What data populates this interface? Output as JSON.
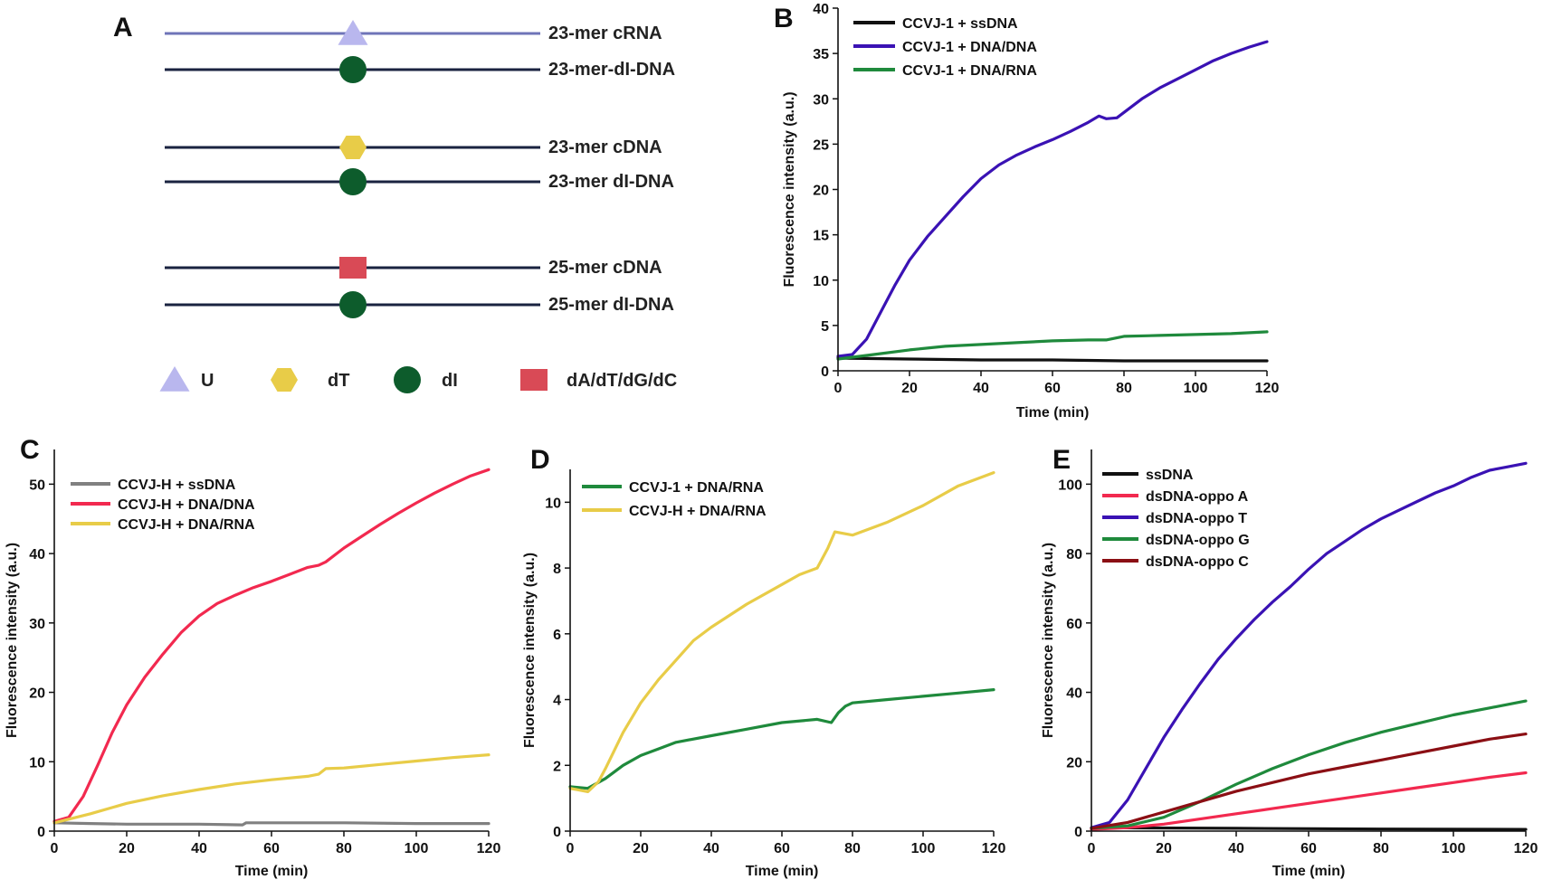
{
  "panel_a": {
    "letter": "A",
    "pairs": [
      {
        "top": {
          "label": "23-mer cRNA",
          "color": "#6f74b8",
          "marker": "triangle",
          "marker_color": "#b9b7ee"
        },
        "bottom": {
          "label": "23-mer-dI-DNA",
          "color": "#1a2340",
          "marker": "circle",
          "marker_color": "#0d5c2c"
        }
      },
      {
        "top": {
          "label": "23-mer cDNA",
          "color": "#1a2340",
          "marker": "hexagon",
          "marker_color": "#e8cc48"
        },
        "bottom": {
          "label": "23-mer dI-DNA",
          "color": "#1a2340",
          "marker": "circle",
          "marker_color": "#0d5c2c"
        }
      },
      {
        "top": {
          "label": "25-mer cDNA",
          "color": "#1a2340",
          "marker": "square",
          "marker_color": "#d94a56"
        },
        "bottom": {
          "label": "25-mer dI-DNA",
          "color": "#1a2340",
          "marker": "circle",
          "marker_color": "#0d5c2c"
        }
      }
    ],
    "legend": [
      {
        "symbol": "triangle",
        "color": "#b9b7ee",
        "label": "U"
      },
      {
        "symbol": "hexagon",
        "color": "#e8cc48",
        "label": "dT"
      },
      {
        "symbol": "circle",
        "color": "#0d5c2c",
        "label": "dI"
      },
      {
        "symbol": "square",
        "color": "#d94a56",
        "label": "dA/dT/dG/dC"
      }
    ]
  },
  "chart_data": [
    {
      "panel": "B",
      "type": "line",
      "xlabel": "Time (min)",
      "ylabel": "Fluorescence intensity (a.u.)",
      "xlim": [
        0,
        120
      ],
      "ylim": [
        0,
        40
      ],
      "xticks": [
        0,
        20,
        40,
        60,
        80,
        100,
        120
      ],
      "yticks": [
        0,
        5,
        10,
        15,
        20,
        25,
        30,
        35,
        40
      ],
      "legend_position": "top-left",
      "series": [
        {
          "name": "CCVJ-1 + ssDNA",
          "color": "#111111",
          "x": [
            0,
            20,
            40,
            60,
            80,
            100,
            120
          ],
          "y": [
            1.4,
            1.3,
            1.2,
            1.2,
            1.1,
            1.1,
            1.1
          ]
        },
        {
          "name": "CCVJ-1 + DNA/DNA",
          "color": "#3a12b4",
          "x": [
            0,
            4,
            8,
            12,
            16,
            20,
            25,
            30,
            35,
            40,
            45,
            50,
            55,
            60,
            65,
            70,
            73,
            75,
            78,
            80,
            85,
            90,
            95,
            100,
            105,
            110,
            115,
            120
          ],
          "y": [
            1.6,
            1.8,
            3.5,
            6.5,
            9.5,
            12.2,
            14.8,
            17.0,
            19.2,
            21.2,
            22.7,
            23.8,
            24.7,
            25.5,
            26.4,
            27.4,
            28.1,
            27.8,
            27.9,
            28.5,
            30.0,
            31.2,
            32.2,
            33.2,
            34.2,
            35.0,
            35.7,
            36.3
          ]
        },
        {
          "name": "CCVJ-1 + DNA/RNA",
          "color": "#1f8a3c",
          "x": [
            0,
            10,
            20,
            30,
            40,
            50,
            60,
            70,
            75,
            80,
            90,
            100,
            110,
            120
          ],
          "y": [
            1.3,
            1.8,
            2.3,
            2.7,
            2.9,
            3.1,
            3.3,
            3.4,
            3.4,
            3.8,
            3.9,
            4.0,
            4.1,
            4.3
          ]
        }
      ]
    },
    {
      "panel": "C",
      "type": "line",
      "xlabel": "Time (min)",
      "ylabel": "Fluorescence intensity (a.u.)",
      "xlim": [
        0,
        120
      ],
      "ylim": [
        0,
        55
      ],
      "xticks": [
        0,
        20,
        40,
        60,
        80,
        100,
        120
      ],
      "yticks": [
        0,
        10,
        20,
        30,
        40,
        50
      ],
      "legend_position": "top-left",
      "series": [
        {
          "name": "CCVJ-H + ssDNA",
          "color": "#808080",
          "x": [
            0,
            10,
            20,
            30,
            40,
            52,
            53,
            60,
            80,
            100,
            120
          ],
          "y": [
            1.2,
            1.1,
            1.0,
            1.0,
            1.0,
            0.9,
            1.2,
            1.2,
            1.2,
            1.1,
            1.1
          ]
        },
        {
          "name": "CCVJ-H + DNA/DNA",
          "color": "#f2294f",
          "x": [
            0,
            4,
            8,
            12,
            16,
            20,
            25,
            30,
            35,
            40,
            45,
            50,
            55,
            60,
            65,
            70,
            73,
            75,
            78,
            80,
            85,
            90,
            95,
            100,
            105,
            110,
            115,
            120
          ],
          "y": [
            1.4,
            2.0,
            5.0,
            9.5,
            14.2,
            18.2,
            22.2,
            25.5,
            28.6,
            31.0,
            32.8,
            34.0,
            35.1,
            36.0,
            37.0,
            38.0,
            38.3,
            38.8,
            40.0,
            40.8,
            42.5,
            44.2,
            45.8,
            47.3,
            48.7,
            50.0,
            51.2,
            52.1
          ]
        },
        {
          "name": "CCVJ-H + DNA/RNA",
          "color": "#e8cc48",
          "x": [
            0,
            10,
            20,
            30,
            40,
            50,
            60,
            70,
            73,
            75,
            80,
            90,
            100,
            110,
            120
          ],
          "y": [
            1.2,
            2.5,
            4.0,
            5.1,
            6.0,
            6.8,
            7.4,
            7.9,
            8.2,
            9.0,
            9.1,
            9.6,
            10.1,
            10.6,
            11.0
          ]
        }
      ]
    },
    {
      "panel": "D",
      "type": "line",
      "xlabel": "Time (min)",
      "ylabel": "Fluorescence intensity (a.u.)",
      "xlim": [
        0,
        120
      ],
      "ylim": [
        0,
        11
      ],
      "xticks": [
        0,
        20,
        40,
        60,
        80,
        100,
        120
      ],
      "yticks": [
        0,
        2,
        4,
        6,
        8,
        10
      ],
      "legend_position": "top-left",
      "series": [
        {
          "name": "CCVJ-1 + DNA/RNA",
          "color": "#1f8a3c",
          "x": [
            0,
            5,
            10,
            15,
            20,
            25,
            30,
            40,
            50,
            60,
            70,
            74,
            76,
            78,
            80,
            90,
            100,
            110,
            120
          ],
          "y": [
            1.35,
            1.3,
            1.6,
            2.0,
            2.3,
            2.5,
            2.7,
            2.9,
            3.1,
            3.3,
            3.4,
            3.3,
            3.6,
            3.8,
            3.9,
            4.0,
            4.1,
            4.2,
            4.3
          ]
        },
        {
          "name": "CCVJ-H + DNA/RNA",
          "color": "#e8cc48",
          "x": [
            0,
            5,
            8,
            10,
            15,
            20,
            25,
            30,
            35,
            40,
            50,
            60,
            65,
            70,
            73,
            75,
            80,
            90,
            100,
            110,
            120
          ],
          "y": [
            1.3,
            1.2,
            1.5,
            1.9,
            3.0,
            3.9,
            4.6,
            5.2,
            5.8,
            6.2,
            6.9,
            7.5,
            7.8,
            8.0,
            8.6,
            9.1,
            9.0,
            9.4,
            9.9,
            10.5,
            10.9
          ]
        }
      ]
    },
    {
      "panel": "E",
      "type": "line",
      "xlabel": "Time (min)",
      "ylabel": "Fluorescence intensity (a.u.)",
      "xlim": [
        0,
        120
      ],
      "ylim": [
        0,
        110
      ],
      "xticks": [
        0,
        20,
        40,
        60,
        80,
        100,
        120
      ],
      "yticks": [
        0,
        20,
        40,
        60,
        80,
        100
      ],
      "legend_position": "top-left",
      "series": [
        {
          "name": "ssDNA",
          "color": "#111111",
          "x": [
            0,
            40,
            80,
            120
          ],
          "y": [
            1.0,
            0.8,
            0.6,
            0.5
          ]
        },
        {
          "name": "dsDNA-oppo A",
          "color": "#f2294f",
          "x": [
            0,
            10,
            20,
            30,
            40,
            50,
            60,
            70,
            80,
            90,
            100,
            110,
            120
          ],
          "y": [
            0.5,
            1.0,
            2.0,
            3.5,
            5.0,
            6.5,
            8.0,
            9.5,
            11.0,
            12.5,
            14.0,
            15.5,
            16.8
          ]
        },
        {
          "name": "dsDNA-oppo T",
          "color": "#3a12b4",
          "x": [
            0,
            5,
            10,
            15,
            20,
            25,
            30,
            35,
            40,
            45,
            50,
            55,
            60,
            65,
            70,
            75,
            80,
            85,
            90,
            95,
            100,
            105,
            110,
            115,
            120
          ],
          "y": [
            1.0,
            2.5,
            9.0,
            18.0,
            27.0,
            35.0,
            42.5,
            49.5,
            55.5,
            61.0,
            66.0,
            70.5,
            75.5,
            80.0,
            83.5,
            87.0,
            90.0,
            92.5,
            95.0,
            97.5,
            99.5,
            102.0,
            104.0,
            105.0,
            106.0
          ]
        },
        {
          "name": "dsDNA-oppo G",
          "color": "#1f8a3c",
          "x": [
            0,
            10,
            20,
            30,
            40,
            50,
            60,
            70,
            80,
            90,
            100,
            110,
            120
          ],
          "y": [
            0.8,
            1.5,
            4.0,
            8.5,
            13.5,
            18.0,
            22.0,
            25.5,
            28.5,
            31.0,
            33.5,
            35.5,
            37.5
          ]
        },
        {
          "name": "dsDNA-oppo C",
          "color": "#8b0f14",
          "x": [
            0,
            10,
            20,
            30,
            40,
            50,
            60,
            70,
            80,
            90,
            100,
            110,
            120
          ],
          "y": [
            0.8,
            2.5,
            5.5,
            8.5,
            11.5,
            14.0,
            16.5,
            18.5,
            20.5,
            22.5,
            24.5,
            26.5,
            28.0
          ]
        }
      ]
    }
  ]
}
